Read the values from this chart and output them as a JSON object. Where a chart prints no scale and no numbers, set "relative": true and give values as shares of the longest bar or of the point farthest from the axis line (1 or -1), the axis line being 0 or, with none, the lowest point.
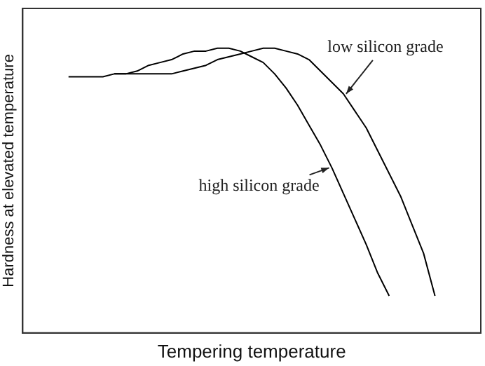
{
  "chart_data": {
    "type": "line",
    "relative": true,
    "xlabel": "Tempering temperature",
    "ylabel": "Hardness at elevated temperature",
    "categories": [
      null,
      null,
      null,
      null,
      null,
      null,
      null,
      null,
      null,
      null,
      null,
      null,
      null,
      null,
      null,
      null,
      null,
      null,
      null,
      null,
      null,
      null,
      null,
      null,
      null,
      null,
      null,
      null,
      null,
      null,
      null,
      null,
      null,
      null,
      null,
      null,
      null,
      null,
      null,
      null,
      null
    ],
    "grid": false,
    "legend": false,
    "marker": "none",
    "line_style": "solid",
    "series": [
      {
        "name": "low silicon grade",
        "color": "#000000",
        "values": [
          null,
          null,
          null,
          null,
          0.9,
          0.9,
          0.9,
          0.9,
          0.91,
          0.91,
          0.91,
          0.91,
          0.91,
          0.91,
          0.92,
          0.93,
          0.94,
          0.96,
          0.97,
          0.98,
          0.99,
          1,
          1,
          0.99,
          0.98,
          0.96,
          0.92,
          0.88,
          0.84,
          0.78,
          0.72,
          0.64,
          0.56,
          0.48,
          0.38,
          0.28,
          0.13,
          null,
          null,
          null,
          null
        ]
      },
      {
        "name": "high silicon grade",
        "color": "#000000",
        "values": [
          null,
          null,
          null,
          null,
          null,
          null,
          null,
          null,
          0.91,
          0.91,
          0.92,
          0.94,
          0.95,
          0.96,
          0.98,
          0.99,
          0.99,
          1,
          1,
          0.99,
          0.97,
          0.95,
          0.91,
          0.86,
          0.8,
          0.73,
          0.66,
          0.58,
          0.49,
          0.4,
          0.31,
          0.21,
          0.13,
          null,
          null,
          null,
          null,
          null,
          null,
          null,
          null
        ]
      }
    ]
  }
}
